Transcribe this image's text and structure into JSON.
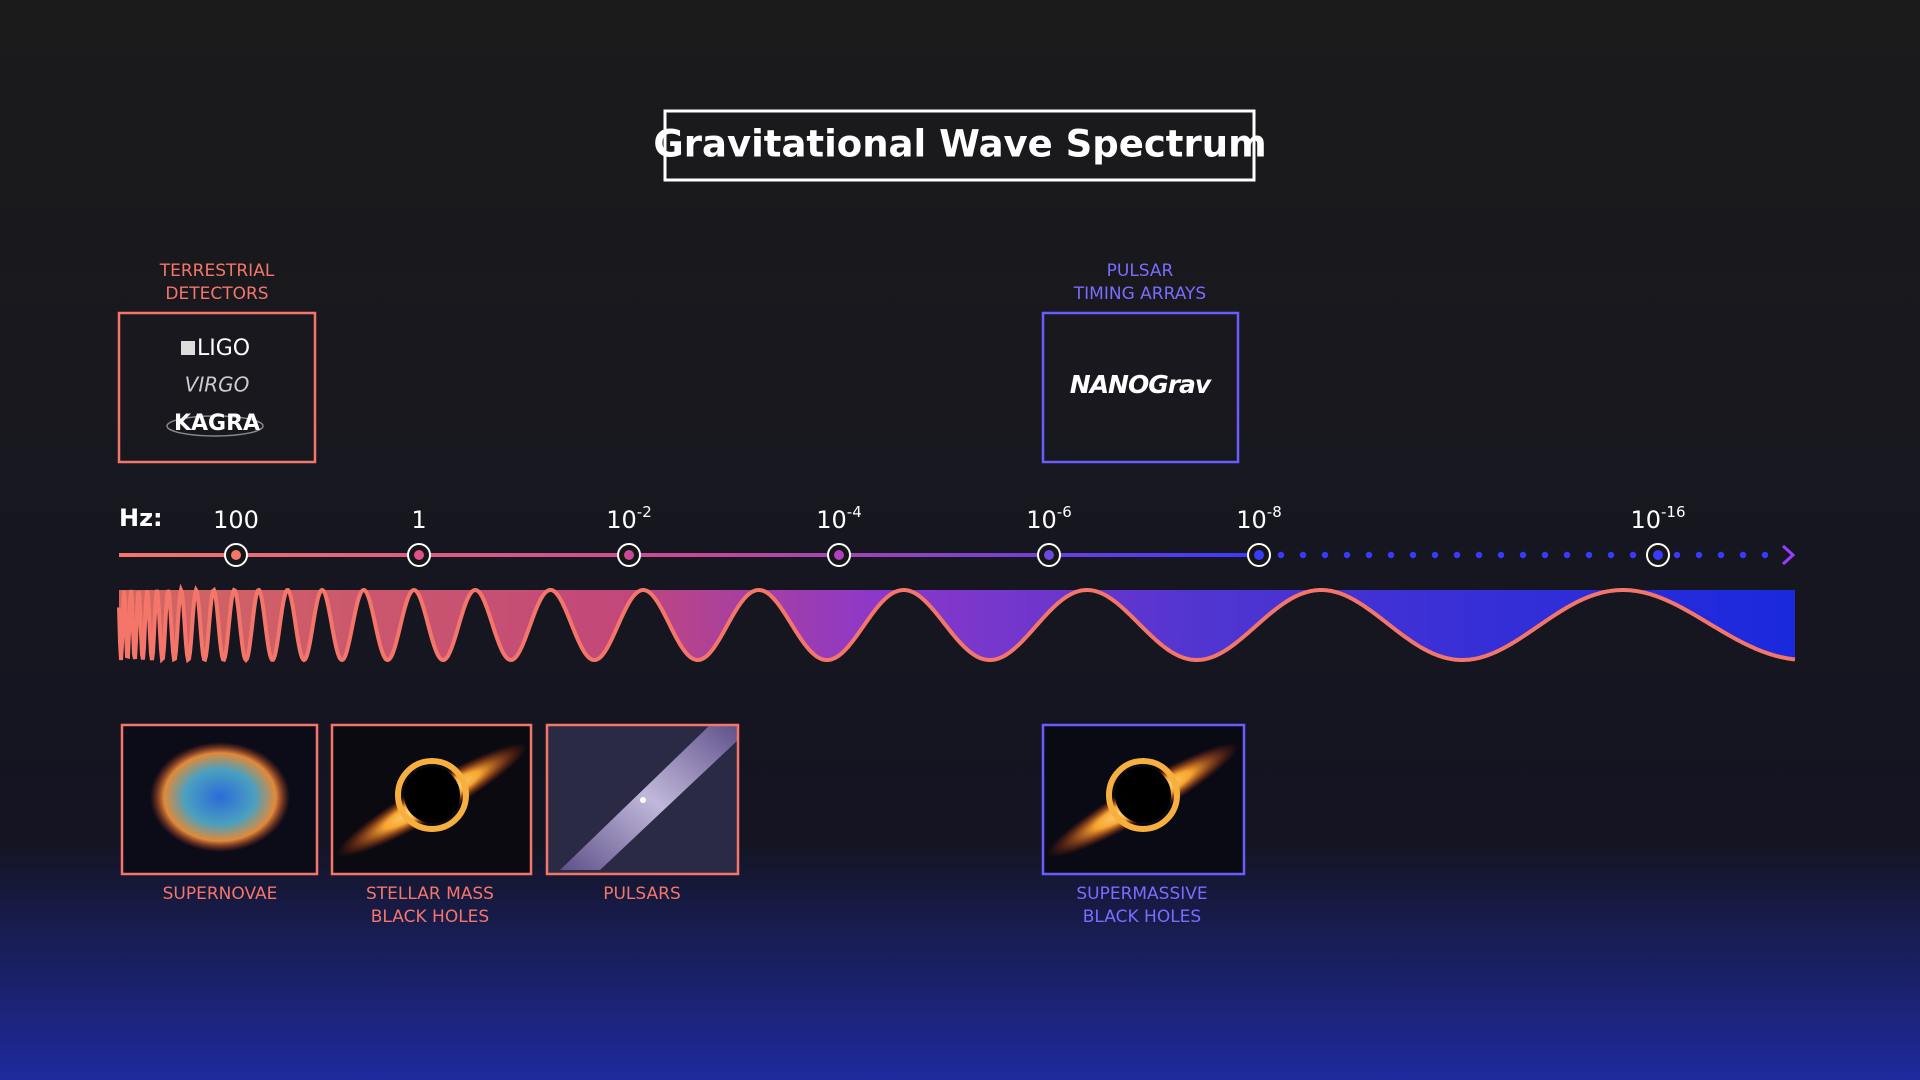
{
  "title": "Gravitational Wave Spectrum",
  "detectors": [
    {
      "label_lines": [
        "TERRESTRIAL",
        "DETECTORS"
      ],
      "logos": [
        "LIGO",
        "VIRGO",
        "KAGRA"
      ]
    },
    {
      "label_lines": [
        "PULSAR",
        "TIMING ARRAYS"
      ],
      "logos": [
        "NANOGrav"
      ]
    }
  ],
  "axis": {
    "unit": "Hz:",
    "ticks": [
      {
        "base": "100"
      },
      {
        "base": "1"
      },
      {
        "base": "10",
        "exponent": "-2"
      },
      {
        "base": "10",
        "exponent": "-4"
      },
      {
        "base": "10",
        "exponent": "-6"
      },
      {
        "base": "10",
        "exponent": "-8"
      },
      {
        "base": "10",
        "exponent": "-16"
      }
    ]
  },
  "sources": [
    {
      "label_lines": [
        "SUPERNOVAE"
      ]
    },
    {
      "label_lines": [
        "STELLAR MASS",
        "BLACK HOLES"
      ]
    },
    {
      "label_lines": [
        "PULSARS"
      ]
    },
    {
      "label_lines": [
        "SUPERMASSIVE",
        "BLACK HOLES"
      ]
    }
  ]
}
